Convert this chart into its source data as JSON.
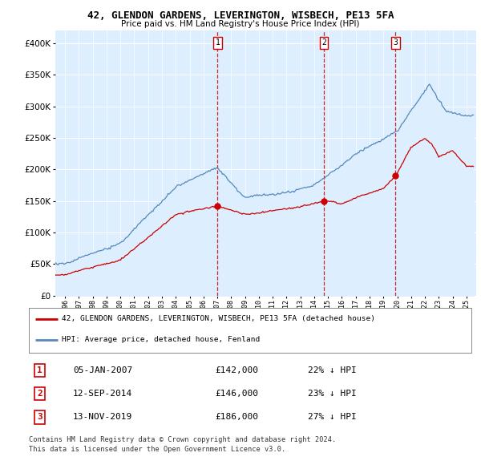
{
  "title1": "42, GLENDON GARDENS, LEVERINGTON, WISBECH, PE13 5FA",
  "title2": "Price paid vs. HM Land Registry's House Price Index (HPI)",
  "legend_property": "42, GLENDON GARDENS, LEVERINGTON, WISBECH, PE13 5FA (detached house)",
  "legend_hpi": "HPI: Average price, detached house, Fenland",
  "footnote1": "Contains HM Land Registry data © Crown copyright and database right 2024.",
  "footnote2": "This data is licensed under the Open Government Licence v3.0.",
  "property_color": "#cc0000",
  "hpi_color": "#5588bb",
  "hpi_fill_color": "#ddeeff",
  "background_color": "#ddeeff",
  "grid_color": "#bbccdd",
  "purchases": [
    {
      "num": 1,
      "date": "05-JAN-2007",
      "price": "£142,000",
      "pct": "22%",
      "year": 2007.02,
      "value": 142000
    },
    {
      "num": 2,
      "date": "12-SEP-2014",
      "price": "£146,000",
      "pct": "23%",
      "year": 2014.7,
      "value": 146000
    },
    {
      "num": 3,
      "date": "13-NOV-2019",
      "price": "£186,000",
      "pct": "27%",
      "year": 2019.87,
      "value": 186000
    }
  ],
  "ylim": [
    0,
    420000
  ],
  "xlim_start": 1995.3,
  "xlim_end": 2025.7
}
